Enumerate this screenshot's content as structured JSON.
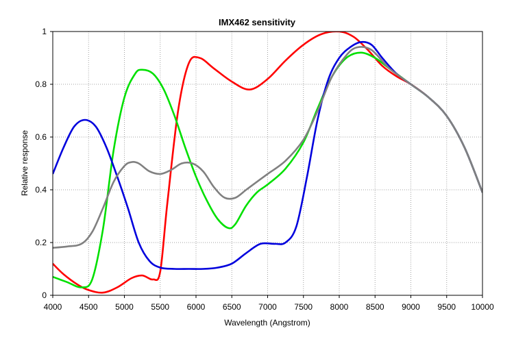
{
  "chart_data": {
    "type": "line",
    "title": "IMX462 sensitivity",
    "xlabel": "Wavelength (Angstrom)",
    "ylabel": "Relative response",
    "xlim": [
      4000,
      10000
    ],
    "ylim": [
      0,
      1.0
    ],
    "grid": true,
    "legend": "none",
    "x_ticks": [
      4000,
      4500,
      5000,
      5500,
      6000,
      6500,
      7000,
      7500,
      8000,
      8500,
      9000,
      9500,
      10000
    ],
    "y_ticks": [
      0,
      0.2,
      0.4,
      0.6,
      0.8,
      1
    ],
    "x_tick_labels": [
      "4000",
      "4500",
      "5000",
      "5500",
      "6000",
      "6500",
      "7000",
      "7500",
      "8000",
      "8500",
      "9000",
      "9500",
      "10000"
    ],
    "y_tick_labels": [
      "0",
      "0.2",
      "0.4",
      "0.6",
      "0.8",
      "1"
    ],
    "series": [
      {
        "color": "#ff0000",
        "points": [
          [
            4000,
            0.12
          ],
          [
            4150,
            0.08
          ],
          [
            4350,
            0.04
          ],
          [
            4500,
            0.02
          ],
          [
            4700,
            0.01
          ],
          [
            4900,
            0.03
          ],
          [
            5100,
            0.065
          ],
          [
            5250,
            0.075
          ],
          [
            5400,
            0.06
          ],
          [
            5500,
            0.09
          ],
          [
            5600,
            0.35
          ],
          [
            5750,
            0.7
          ],
          [
            5900,
            0.88
          ],
          [
            6050,
            0.9
          ],
          [
            6250,
            0.86
          ],
          [
            6500,
            0.81
          ],
          [
            6750,
            0.78
          ],
          [
            7000,
            0.82
          ],
          [
            7250,
            0.89
          ],
          [
            7500,
            0.95
          ],
          [
            7750,
            0.99
          ],
          [
            8000,
            1.0
          ],
          [
            8200,
            0.98
          ],
          [
            8400,
            0.93
          ],
          [
            8600,
            0.87
          ],
          [
            8800,
            0.83
          ],
          [
            9000,
            0.8
          ],
          [
            9250,
            0.75
          ],
          [
            9500,
            0.68
          ],
          [
            9750,
            0.56
          ],
          [
            10000,
            0.39
          ]
        ]
      },
      {
        "color": "#00e000",
        "points": [
          [
            4000,
            0.07
          ],
          [
            4200,
            0.05
          ],
          [
            4400,
            0.03
          ],
          [
            4550,
            0.06
          ],
          [
            4700,
            0.25
          ],
          [
            4850,
            0.55
          ],
          [
            5000,
            0.75
          ],
          [
            5150,
            0.84
          ],
          [
            5250,
            0.855
          ],
          [
            5400,
            0.84
          ],
          [
            5550,
            0.78
          ],
          [
            5700,
            0.68
          ],
          [
            5850,
            0.56
          ],
          [
            6000,
            0.45
          ],
          [
            6150,
            0.36
          ],
          [
            6300,
            0.29
          ],
          [
            6450,
            0.255
          ],
          [
            6550,
            0.27
          ],
          [
            6700,
            0.34
          ],
          [
            6850,
            0.39
          ],
          [
            7000,
            0.42
          ],
          [
            7250,
            0.48
          ],
          [
            7500,
            0.58
          ],
          [
            7700,
            0.71
          ],
          [
            7900,
            0.83
          ],
          [
            8100,
            0.9
          ],
          [
            8300,
            0.92
          ],
          [
            8500,
            0.9
          ],
          [
            8700,
            0.86
          ],
          [
            9000,
            0.8
          ],
          [
            9250,
            0.75
          ],
          [
            9500,
            0.68
          ],
          [
            9750,
            0.56
          ],
          [
            10000,
            0.39
          ]
        ]
      },
      {
        "color": "#0000dd",
        "points": [
          [
            4000,
            0.46
          ],
          [
            4150,
            0.56
          ],
          [
            4300,
            0.64
          ],
          [
            4450,
            0.665
          ],
          [
            4600,
            0.64
          ],
          [
            4750,
            0.56
          ],
          [
            4900,
            0.45
          ],
          [
            5050,
            0.33
          ],
          [
            5200,
            0.2
          ],
          [
            5350,
            0.13
          ],
          [
            5500,
            0.105
          ],
          [
            5700,
            0.1
          ],
          [
            5900,
            0.1
          ],
          [
            6100,
            0.1
          ],
          [
            6300,
            0.105
          ],
          [
            6500,
            0.12
          ],
          [
            6700,
            0.16
          ],
          [
            6900,
            0.195
          ],
          [
            7100,
            0.195
          ],
          [
            7250,
            0.2
          ],
          [
            7400,
            0.26
          ],
          [
            7550,
            0.45
          ],
          [
            7700,
            0.67
          ],
          [
            7850,
            0.82
          ],
          [
            8000,
            0.9
          ],
          [
            8150,
            0.94
          ],
          [
            8300,
            0.96
          ],
          [
            8450,
            0.95
          ],
          [
            8600,
            0.9
          ],
          [
            8800,
            0.84
          ],
          [
            9000,
            0.8
          ],
          [
            9250,
            0.75
          ],
          [
            9500,
            0.68
          ],
          [
            9750,
            0.56
          ],
          [
            10000,
            0.39
          ]
        ]
      },
      {
        "color": "#808080",
        "points": [
          [
            4000,
            0.18
          ],
          [
            4200,
            0.185
          ],
          [
            4400,
            0.195
          ],
          [
            4550,
            0.24
          ],
          [
            4700,
            0.33
          ],
          [
            4850,
            0.43
          ],
          [
            5000,
            0.49
          ],
          [
            5100,
            0.505
          ],
          [
            5200,
            0.5
          ],
          [
            5350,
            0.47
          ],
          [
            5500,
            0.46
          ],
          [
            5650,
            0.475
          ],
          [
            5800,
            0.5
          ],
          [
            5950,
            0.5
          ],
          [
            6100,
            0.47
          ],
          [
            6250,
            0.41
          ],
          [
            6400,
            0.37
          ],
          [
            6550,
            0.37
          ],
          [
            6700,
            0.4
          ],
          [
            6850,
            0.43
          ],
          [
            7000,
            0.46
          ],
          [
            7250,
            0.51
          ],
          [
            7500,
            0.59
          ],
          [
            7700,
            0.7
          ],
          [
            7900,
            0.83
          ],
          [
            8100,
            0.91
          ],
          [
            8250,
            0.94
          ],
          [
            8450,
            0.93
          ],
          [
            8700,
            0.86
          ],
          [
            9000,
            0.8
          ],
          [
            9250,
            0.75
          ],
          [
            9500,
            0.68
          ],
          [
            9750,
            0.56
          ],
          [
            10000,
            0.39
          ]
        ]
      }
    ]
  }
}
